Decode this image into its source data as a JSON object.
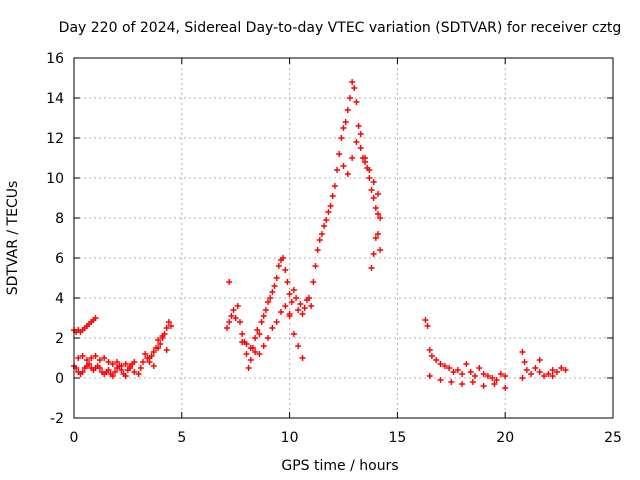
{
  "chart_data": {
    "type": "scatter",
    "title": "Day 220 of 2024, Sidereal Day-to-day VTEC variation (SDTVAR) for receiver cztg",
    "xlabel": "GPS time / hours",
    "ylabel": "SDTVAR / TECUs",
    "xlim": [
      0,
      25
    ],
    "ylim": [
      -2,
      16
    ],
    "xticks": [
      0,
      5,
      10,
      15,
      20,
      25
    ],
    "yticks": [
      -2,
      0,
      2,
      4,
      6,
      8,
      10,
      12,
      14,
      16
    ],
    "grid": true,
    "marker": "+",
    "color": "#ff0000",
    "series": [
      {
        "name": "SDTVAR",
        "x": [
          0.0,
          0.1,
          0.2,
          0.3,
          0.4,
          0.5,
          0.6,
          0.7,
          0.8,
          0.9,
          1.0,
          0.0,
          0.1,
          0.2,
          0.3,
          0.4,
          0.5,
          0.6,
          0.7,
          0.8,
          0.9,
          1.0,
          1.1,
          1.2,
          1.3,
          1.4,
          1.5,
          1.6,
          1.7,
          1.8,
          1.9,
          2.0,
          2.1,
          2.2,
          2.3,
          2.4,
          2.5,
          2.6,
          2.7,
          2.8,
          0.2,
          0.4,
          0.6,
          0.8,
          1.0,
          1.2,
          1.4,
          1.6,
          1.8,
          2.0,
          2.2,
          2.4,
          2.6,
          2.8,
          3.0,
          3.1,
          3.2,
          3.3,
          3.4,
          3.5,
          3.6,
          3.7,
          3.8,
          3.9,
          4.0,
          4.1,
          4.2,
          4.3,
          4.4,
          4.5,
          3.5,
          3.7,
          3.9,
          4.1,
          4.3,
          7.1,
          7.2,
          7.3,
          7.4,
          7.5,
          7.6,
          7.7,
          7.8,
          7.9,
          8.0,
          8.1,
          8.2,
          8.3,
          8.4,
          8.5,
          8.6,
          8.7,
          8.8,
          8.9,
          9.0,
          9.1,
          9.2,
          9.3,
          9.4,
          9.5,
          9.6,
          9.7,
          9.8,
          9.9,
          10.0,
          7.8,
          8.0,
          8.2,
          8.4,
          8.6,
          8.8,
          9.0,
          9.2,
          9.4,
          9.6,
          9.8,
          10.0,
          10.2,
          10.4,
          10.6,
          10.0,
          10.1,
          10.2,
          10.3,
          10.4,
          10.5,
          10.6,
          10.7,
          10.8,
          10.9,
          11.0,
          11.1,
          11.2,
          11.3,
          11.4,
          11.5,
          11.6,
          11.7,
          11.8,
          11.9,
          12.0,
          12.1,
          12.2,
          12.3,
          12.4,
          12.5,
          12.6,
          12.7,
          12.8,
          12.9,
          13.0,
          13.1,
          13.2,
          13.3,
          13.4,
          13.5,
          13.6,
          13.7,
          13.8,
          13.9,
          14.0,
          14.1,
          14.2,
          12.5,
          12.7,
          12.9,
          13.1,
          13.3,
          13.5,
          13.7,
          13.9,
          14.1,
          13.8,
          13.9,
          14.0,
          14.1,
          14.2,
          7.2,
          16.3,
          16.4,
          16.5,
          16.6,
          16.8,
          17.0,
          17.2,
          17.4,
          17.6,
          17.8,
          18.0,
          18.2,
          18.4,
          18.6,
          18.8,
          19.0,
          19.2,
          19.4,
          19.6,
          19.8,
          20.0,
          16.5,
          17.0,
          17.5,
          18.0,
          18.5,
          19.0,
          19.5,
          20.0,
          20.8,
          20.9,
          21.0,
          21.2,
          21.4,
          21.6,
          21.8,
          22.0,
          22.2,
          22.4,
          22.6,
          22.8,
          20.8,
          21.6,
          22.2
        ],
        "y": [
          2.4,
          2.3,
          2.4,
          2.3,
          2.4,
          2.5,
          2.6,
          2.7,
          2.8,
          2.9,
          3.0,
          0.6,
          0.5,
          0.3,
          0.2,
          0.3,
          0.5,
          0.6,
          0.7,
          0.5,
          0.4,
          0.5,
          0.6,
          0.5,
          0.3,
          0.2,
          0.3,
          0.4,
          0.2,
          0.1,
          0.3,
          0.5,
          0.6,
          0.4,
          0.2,
          0.1,
          0.4,
          0.6,
          0.7,
          0.8,
          1.0,
          1.1,
          0.9,
          1.0,
          1.1,
          0.9,
          1.0,
          0.8,
          0.7,
          0.8,
          0.6,
          0.7,
          0.5,
          0.3,
          0.2,
          0.5,
          0.8,
          1.2,
          1.0,
          0.8,
          1.1,
          1.3,
          1.5,
          1.9,
          1.7,
          2.0,
          2.2,
          2.5,
          2.8,
          2.6,
          1.0,
          0.6,
          1.5,
          2.1,
          1.4,
          2.5,
          2.8,
          3.1,
          3.4,
          3.0,
          3.6,
          2.8,
          2.2,
          1.8,
          1.2,
          0.5,
          0.9,
          1.5,
          2.0,
          2.4,
          2.2,
          2.8,
          3.1,
          3.4,
          3.8,
          4.0,
          4.3,
          4.6,
          5.0,
          5.6,
          5.9,
          6.0,
          5.4,
          4.8,
          4.2,
          1.8,
          1.7,
          1.5,
          1.3,
          1.2,
          1.6,
          2.0,
          2.5,
          2.8,
          3.3,
          3.6,
          3.1,
          2.2,
          1.6,
          1.0,
          3.2,
          3.8,
          4.4,
          4.0,
          3.4,
          3.7,
          3.2,
          3.5,
          3.9,
          4.0,
          3.6,
          4.8,
          5.6,
          6.4,
          6.9,
          7.2,
          7.6,
          7.9,
          8.3,
          8.6,
          9.1,
          9.6,
          10.4,
          11.2,
          12.0,
          12.5,
          12.8,
          13.4,
          14.0,
          14.8,
          14.5,
          13.8,
          12.6,
          11.5,
          11.0,
          10.8,
          10.5,
          10.0,
          9.4,
          9.0,
          8.5,
          8.2,
          8.0,
          10.6,
          10.2,
          11.0,
          11.8,
          12.2,
          11.0,
          10.4,
          9.8,
          9.2,
          5.5,
          6.2,
          7.0,
          7.2,
          6.4,
          4.8,
          2.9,
          2.6,
          1.4,
          1.1,
          0.9,
          0.7,
          0.6,
          0.5,
          0.3,
          0.4,
          0.2,
          0.7,
          0.3,
          0.1,
          0.5,
          0.2,
          0.1,
          0.0,
          -0.1,
          0.2,
          0.1,
          0.1,
          -0.1,
          -0.2,
          -0.3,
          -0.2,
          -0.4,
          -0.3,
          -0.5,
          1.3,
          0.8,
          0.4,
          0.2,
          0.5,
          0.3,
          0.1,
          0.2,
          0.4,
          0.3,
          0.5,
          0.4,
          0.0,
          0.9,
          0.1
        ]
      }
    ]
  }
}
